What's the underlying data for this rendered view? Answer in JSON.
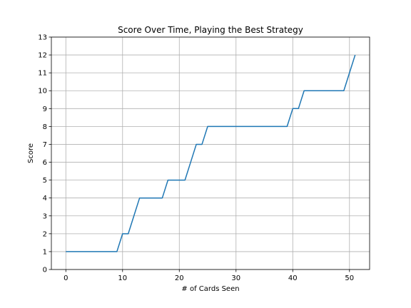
{
  "chart_data": {
    "type": "line",
    "title": "Score Over Time, Playing the Best Strategy",
    "xlabel": "# of Cards Seen",
    "ylabel": "Score",
    "xlim": [
      -2.55,
      53.55
    ],
    "ylim": [
      0,
      13
    ],
    "xticks": [
      0,
      10,
      20,
      30,
      40,
      50
    ],
    "yticks": [
      0,
      1,
      2,
      3,
      4,
      5,
      6,
      7,
      8,
      9,
      10,
      11,
      12,
      13
    ],
    "grid": true,
    "colors": {
      "line": "#1f77b4",
      "grid": "#b0b0b0"
    },
    "series": [
      {
        "x": [
          0,
          1,
          2,
          3,
          4,
          5,
          6,
          7,
          8,
          9,
          10,
          11,
          12,
          13,
          14,
          15,
          16,
          17,
          18,
          19,
          20,
          21,
          22,
          23,
          24,
          25,
          26,
          27,
          28,
          29,
          30,
          31,
          32,
          33,
          34,
          35,
          36,
          37,
          38,
          39,
          40,
          41,
          42,
          43,
          44,
          45,
          46,
          47,
          48,
          49,
          50,
          51
        ],
        "y": [
          1,
          1,
          1,
          1,
          1,
          1,
          1,
          1,
          1,
          1,
          2,
          2,
          3,
          4,
          4,
          4,
          4,
          4,
          5,
          5,
          5,
          5,
          6,
          7,
          7,
          8,
          8,
          8,
          8,
          8,
          8,
          8,
          8,
          8,
          8,
          8,
          8,
          8,
          8,
          8,
          9,
          9,
          10,
          10,
          10,
          10,
          10,
          10,
          10,
          10,
          11,
          12
        ]
      }
    ]
  }
}
